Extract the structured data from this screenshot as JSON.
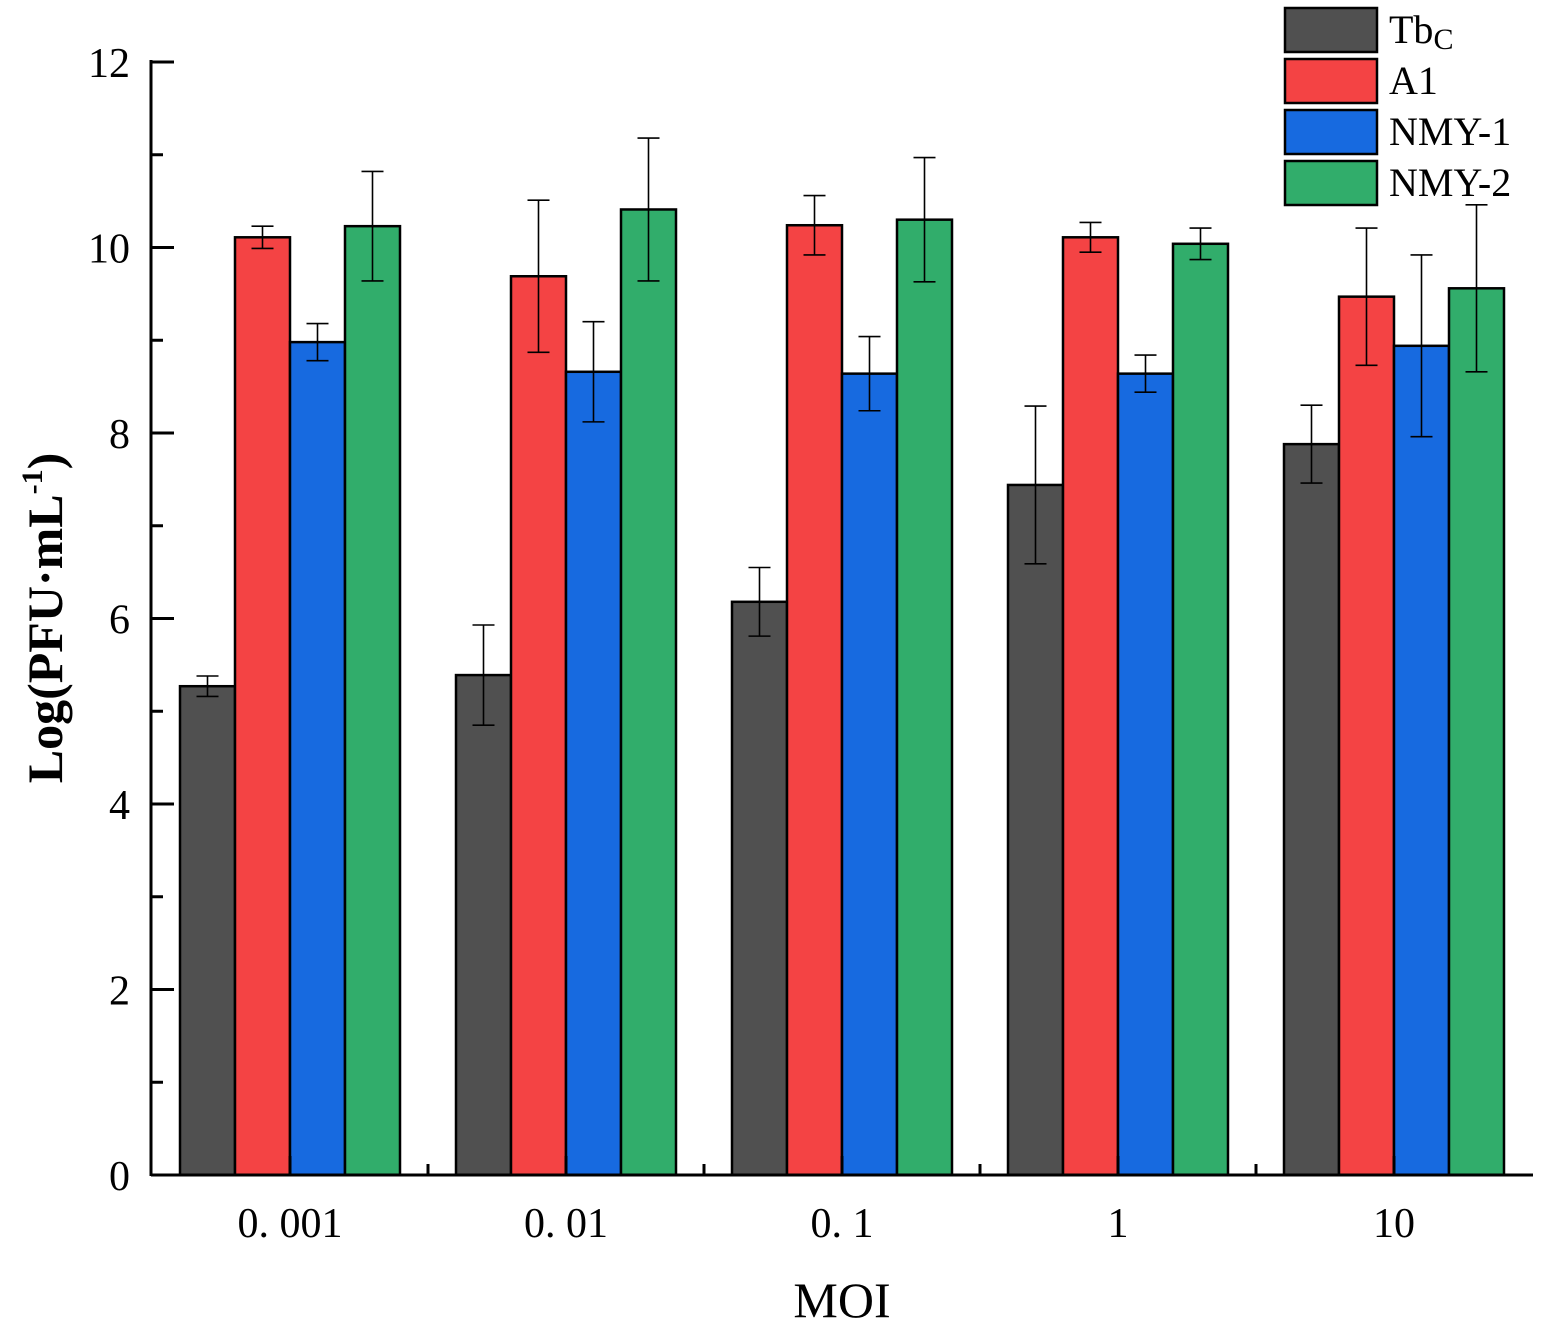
{
  "chart_data": {
    "type": "bar",
    "title": "",
    "xlabel": "MOI",
    "ylabel": "Log(PFU·mL",
    "ylabel_sup": "-1",
    "ylabel_close": ")",
    "categories": [
      "0. 001",
      "0. 01",
      "0. 1",
      "1",
      "10"
    ],
    "ylim": [
      0,
      12
    ],
    "yticks": [
      0,
      2,
      4,
      6,
      8,
      10,
      12
    ],
    "yticks_labels": [
      "0",
      "2",
      "4",
      "6",
      "8",
      "10",
      "12"
    ],
    "grid": false,
    "legend_position": "top-right",
    "series": [
      {
        "name": "Tb",
        "name_sub": "C",
        "color": "#505050",
        "values": [
          5.27,
          5.39,
          6.18,
          7.44,
          7.88
        ],
        "errors": [
          0.11,
          0.54,
          0.37,
          0.85,
          0.42
        ]
      },
      {
        "name": "A1",
        "name_sub": "",
        "color": "#f44344",
        "values": [
          10.11,
          9.69,
          10.24,
          10.11,
          9.47
        ],
        "errors": [
          0.12,
          0.82,
          0.32,
          0.16,
          0.74
        ]
      },
      {
        "name": "NMY-1",
        "name_sub": "",
        "color": "#176ae0",
        "values": [
          8.98,
          8.66,
          8.64,
          8.64,
          8.94
        ],
        "errors": [
          0.2,
          0.54,
          0.4,
          0.2,
          0.98
        ]
      },
      {
        "name": "NMY-2",
        "name_sub": "",
        "color": "#31ad6b",
        "values": [
          10.23,
          10.41,
          10.3,
          10.04,
          9.56
        ],
        "errors": [
          0.59,
          0.77,
          0.67,
          0.17,
          0.9
        ]
      }
    ]
  }
}
